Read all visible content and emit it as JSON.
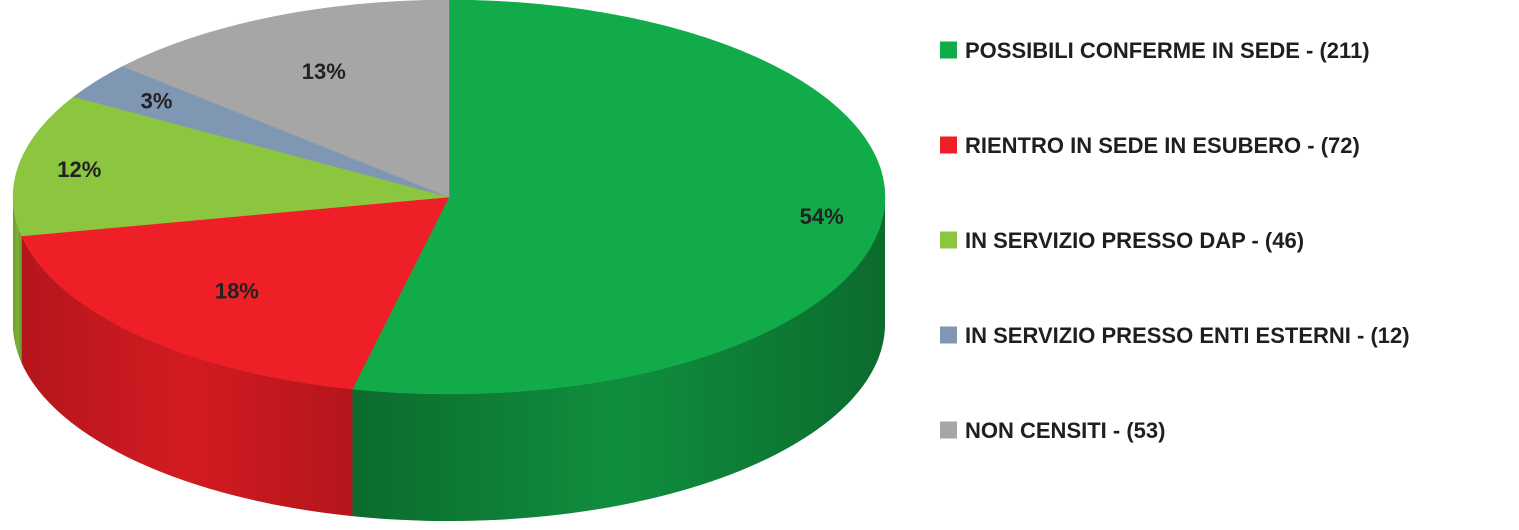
{
  "chart_data": {
    "type": "pie",
    "title": "",
    "style": "3d-perspective",
    "legend_position": "right",
    "categories": [
      "POSSIBILI CONFERME IN SEDE - (211)",
      "RIENTRO IN SEDE IN ESUBERO - (72)",
      "IN SERVIZIO PRESSO DAP - (46)",
      "IN SERVIZIO PRESSO ENTI ESTERNI - (12)",
      "NON CENSITI - (53)"
    ],
    "values": [
      211,
      72,
      46,
      12,
      53
    ],
    "percent_labels": [
      "54%",
      "18%",
      "12%",
      "3%",
      "13%"
    ],
    "colors": [
      "#12ab4a",
      "#ee1f26",
      "#8cc63e",
      "#7f97b3",
      "#a6a6a6"
    ],
    "side_colors": [
      "#0c6b2e",
      "#b3161c",
      "#6a9a2e",
      "#5d7188",
      "#7e7e7e"
    ]
  }
}
